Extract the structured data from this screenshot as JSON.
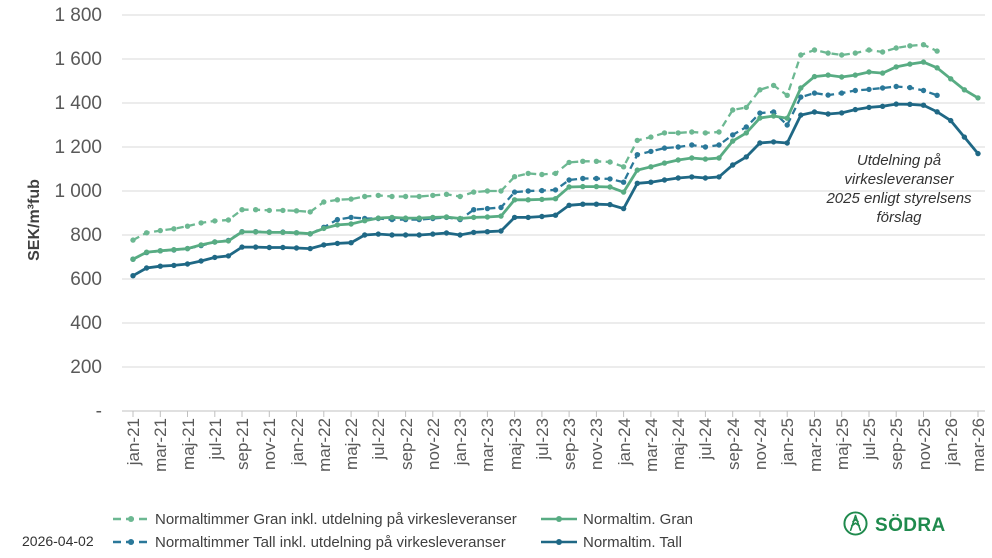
{
  "meta": {
    "date_label": "2026-04-02",
    "brand": "SÖDRA"
  },
  "chart_data": {
    "type": "line",
    "title": "",
    "xlabel": "",
    "ylabel": "SEK/m³fub",
    "ylim": [
      0,
      1800
    ],
    "ytick_step": 200,
    "ytick_labels_top_down": [
      "1 800",
      "1 600",
      "1 400",
      "1 200",
      "1 000",
      "800",
      "600",
      "400",
      "200",
      "-"
    ],
    "grid": "horizontal",
    "legend_position": "bottom",
    "xtick_every": 2,
    "x_months": [
      "jan-21",
      "feb-21",
      "mar-21",
      "apr-21",
      "maj-21",
      "jun-21",
      "jul-21",
      "aug-21",
      "sep-21",
      "okt-21",
      "nov-21",
      "dec-21",
      "jan-22",
      "feb-22",
      "mar-22",
      "apr-22",
      "maj-22",
      "jun-22",
      "jul-22",
      "aug-22",
      "sep-22",
      "okt-22",
      "nov-22",
      "dec-22",
      "jan-23",
      "feb-23",
      "mar-23",
      "apr-23",
      "maj-23",
      "jun-23",
      "jul-23",
      "aug-23",
      "sep-23",
      "okt-23",
      "nov-23",
      "dec-23",
      "jan-24",
      "feb-24",
      "mar-24",
      "apr-24",
      "maj-24",
      "jun-24",
      "jul-24",
      "aug-24",
      "sep-24",
      "okt-24",
      "nov-24",
      "dec-24",
      "jan-25",
      "feb-25",
      "mar-25",
      "apr-25",
      "maj-25",
      "jun-25",
      "jul-25",
      "aug-25",
      "sep-25",
      "okt-25",
      "nov-25",
      "dec-25",
      "jan-26",
      "feb-26",
      "mar-26"
    ],
    "series": [
      {
        "name": "Normaltimmer Gran inkl. utdelning på virkesleveranser",
        "style": "dashed",
        "color": "#6CB892",
        "values": [
          777,
          810,
          820,
          828,
          840,
          855,
          864,
          868,
          915,
          915,
          912,
          912,
          910,
          905,
          950,
          960,
          963,
          975,
          980,
          975,
          975,
          975,
          980,
          985,
          975,
          995,
          1000,
          1000,
          1065,
          1080,
          1075,
          1080,
          1130,
          1135,
          1135,
          1132,
          1110,
          1230,
          1245,
          1264,
          1264,
          1268,
          1264,
          1268,
          1368,
          1380,
          1460,
          1480,
          1435,
          1618,
          1641,
          1627,
          1618,
          1627,
          1641,
          1632,
          1650,
          1660,
          1665,
          1636
        ]
      },
      {
        "name": "Normaltim. Gran",
        "style": "solid",
        "color": "#58AC83",
        "values": [
          690,
          722,
          728,
          733,
          738,
          755,
          768,
          773,
          814,
          814,
          812,
          812,
          810,
          806,
          830,
          846,
          850,
          865,
          877,
          880,
          877,
          877,
          880,
          882,
          875,
          880,
          882,
          886,
          960,
          960,
          962,
          965,
          1018,
          1020,
          1020,
          1018,
          995,
          1095,
          1110,
          1127,
          1141,
          1150,
          1145,
          1150,
          1227,
          1264,
          1332,
          1341,
          1331,
          1468,
          1520,
          1527,
          1518,
          1527,
          1541,
          1536,
          1564,
          1577,
          1586,
          1560,
          1510,
          1460,
          1423
        ]
      },
      {
        "name": "Normaltimmer Tall inkl. utdelning på virkesleveranser",
        "style": "dashed",
        "color": "#2A7899",
        "values": [
          690,
          720,
          728,
          732,
          738,
          752,
          768,
          775,
          815,
          815,
          813,
          813,
          810,
          805,
          835,
          870,
          880,
          875,
          875,
          870,
          870,
          870,
          875,
          880,
          870,
          915,
          920,
          925,
          995,
          1000,
          1002,
          1005,
          1050,
          1057,
          1057,
          1055,
          1040,
          1165,
          1180,
          1195,
          1200,
          1209,
          1200,
          1209,
          1255,
          1291,
          1354,
          1359,
          1300,
          1427,
          1445,
          1436,
          1445,
          1457,
          1462,
          1468,
          1475,
          1470,
          1457,
          1435
        ]
      },
      {
        "name": "Normaltim. Tall",
        "style": "solid",
        "color": "#1F6885",
        "values": [
          615,
          650,
          658,
          662,
          668,
          682,
          698,
          705,
          745,
          745,
          743,
          743,
          741,
          738,
          755,
          762,
          765,
          800,
          804,
          800,
          800,
          800,
          804,
          809,
          800,
          812,
          815,
          818,
          880,
          880,
          884,
          890,
          935,
          940,
          940,
          938,
          920,
          1035,
          1040,
          1050,
          1059,
          1064,
          1059,
          1064,
          1118,
          1155,
          1218,
          1223,
          1218,
          1345,
          1359,
          1350,
          1355,
          1370,
          1380,
          1385,
          1395,
          1394,
          1390,
          1360,
          1320,
          1245,
          1170
        ]
      }
    ],
    "annotation": {
      "line1": "Utdelning på virkesleveranser",
      "line2": "2025 enligt styrelsens förslag"
    },
    "colors": {
      "grid": "#D9D9D9",
      "axis": "#C0C0C0",
      "tick_text": "#595959",
      "logo_green": "#1F8A4D"
    }
  }
}
